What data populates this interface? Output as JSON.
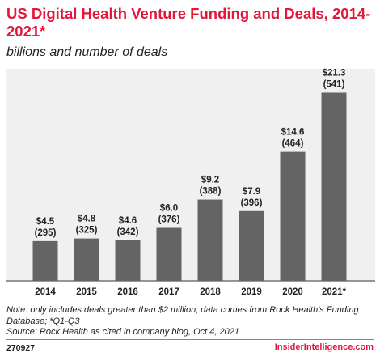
{
  "title": "US Digital Health Venture Funding and Deals, 2014-2021*",
  "subtitle": "billions and number of deals",
  "chart_data": {
    "type": "bar",
    "categories": [
      "2014",
      "2015",
      "2016",
      "2017",
      "2018",
      "2019",
      "2020",
      "2021*"
    ],
    "values": [
      4.5,
      4.8,
      4.6,
      6.0,
      9.2,
      7.9,
      14.6,
      21.3
    ],
    "deals": [
      295,
      325,
      342,
      376,
      388,
      396,
      464,
      541
    ],
    "value_labels": [
      "$4.5",
      "$4.8",
      "$4.6",
      "$6.0",
      "$9.2",
      "$7.9",
      "$14.6",
      "$21.3"
    ],
    "deal_labels": [
      "(295)",
      "(325)",
      "(342)",
      "(376)",
      "(388)",
      "(396)",
      "(464)",
      "(541)"
    ],
    "ylim": [
      0,
      24
    ],
    "grid": false,
    "bar_color": "#646464"
  },
  "notes": {
    "line1": "Note: only includes deals greater than $2 million; data comes from Rock Health's Funding Database; *Q1-Q3",
    "line2": "Source: Rock Health as cited in company blog, Oct 4, 2021"
  },
  "footer": {
    "chart_id": "270927",
    "brand": "InsiderIntelligence.com"
  },
  "colors": {
    "accent": "#e2173a",
    "bar": "#646464",
    "panel": "#f0f0f0"
  }
}
